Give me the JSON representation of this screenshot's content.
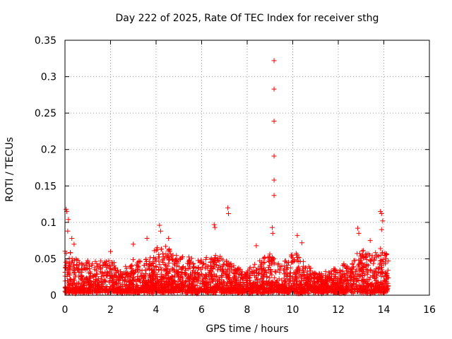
{
  "chart_data": {
    "type": "scatter",
    "title": "Day 222 of 2025, Rate Of TEC Index for receiver sthg",
    "xlabel": "GPS time / hours",
    "ylabel": "ROTI / TECUs",
    "xlim": [
      0,
      16
    ],
    "ylim": [
      0,
      0.35
    ],
    "xticks": [
      "0",
      "2",
      "4",
      "6",
      "8",
      "10",
      "12",
      "14",
      "16"
    ],
    "yticks": [
      "0",
      "0.05",
      "0.1",
      "0.15",
      "0.2",
      "0.25",
      "0.3",
      "0.35"
    ],
    "grid": true,
    "marker": "+",
    "color": "#ff0000",
    "data_range_hours": [
      0,
      14.2
    ],
    "highlights": [
      {
        "x": 0.05,
        "y": 0.118
      },
      {
        "x": 0.08,
        "y": 0.115
      },
      {
        "x": 0.15,
        "y": 0.104
      },
      {
        "x": 0.12,
        "y": 0.088
      },
      {
        "x": 0.3,
        "y": 0.078
      },
      {
        "x": 0.4,
        "y": 0.07
      },
      {
        "x": 2.0,
        "y": 0.06
      },
      {
        "x": 3.0,
        "y": 0.07
      },
      {
        "x": 3.6,
        "y": 0.078
      },
      {
        "x": 4.15,
        "y": 0.096
      },
      {
        "x": 4.2,
        "y": 0.088
      },
      {
        "x": 4.55,
        "y": 0.078
      },
      {
        "x": 6.55,
        "y": 0.097
      },
      {
        "x": 6.58,
        "y": 0.093
      },
      {
        "x": 7.15,
        "y": 0.12
      },
      {
        "x": 7.18,
        "y": 0.112
      },
      {
        "x": 8.4,
        "y": 0.068
      },
      {
        "x": 9.1,
        "y": 0.093
      },
      {
        "x": 9.12,
        "y": 0.085
      },
      {
        "x": 9.18,
        "y": 0.322
      },
      {
        "x": 9.18,
        "y": 0.283
      },
      {
        "x": 9.18,
        "y": 0.239
      },
      {
        "x": 9.18,
        "y": 0.191
      },
      {
        "x": 9.18,
        "y": 0.158
      },
      {
        "x": 9.18,
        "y": 0.137
      },
      {
        "x": 10.2,
        "y": 0.082
      },
      {
        "x": 10.4,
        "y": 0.072
      },
      {
        "x": 12.85,
        "y": 0.092
      },
      {
        "x": 12.9,
        "y": 0.085
      },
      {
        "x": 13.4,
        "y": 0.075
      },
      {
        "x": 13.85,
        "y": 0.115
      },
      {
        "x": 13.9,
        "y": 0.112
      },
      {
        "x": 13.95,
        "y": 0.102
      },
      {
        "x": 13.9,
        "y": 0.09
      }
    ],
    "activity_profile": [
      [
        0.0,
        0.06
      ],
      [
        0.3,
        0.055
      ],
      [
        0.6,
        0.04
      ],
      [
        1.0,
        0.042
      ],
      [
        1.5,
        0.04
      ],
      [
        2.0,
        0.045
      ],
      [
        2.5,
        0.028
      ],
      [
        3.0,
        0.045
      ],
      [
        3.5,
        0.04
      ],
      [
        4.0,
        0.06
      ],
      [
        4.5,
        0.065
      ],
      [
        5.0,
        0.05
      ],
      [
        5.5,
        0.045
      ],
      [
        6.0,
        0.045
      ],
      [
        6.5,
        0.05
      ],
      [
        7.0,
        0.048
      ],
      [
        7.5,
        0.032
      ],
      [
        8.0,
        0.032
      ],
      [
        8.5,
        0.042
      ],
      [
        9.0,
        0.055
      ],
      [
        9.5,
        0.035
      ],
      [
        10.0,
        0.06
      ],
      [
        10.5,
        0.04
      ],
      [
        11.0,
        0.025
      ],
      [
        11.5,
        0.025
      ],
      [
        12.0,
        0.035
      ],
      [
        12.5,
        0.04
      ],
      [
        13.0,
        0.06
      ],
      [
        13.5,
        0.05
      ],
      [
        14.0,
        0.06
      ],
      [
        14.2,
        0.05
      ]
    ]
  }
}
